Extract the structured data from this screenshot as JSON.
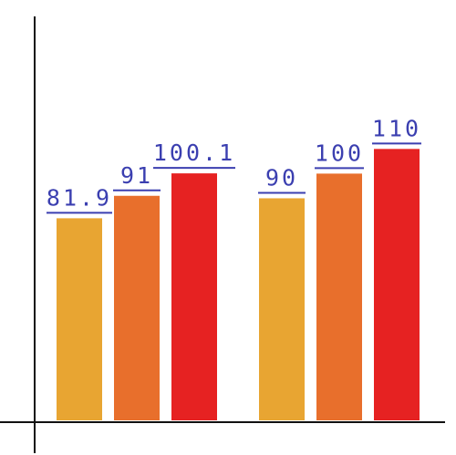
{
  "chart_data": {
    "type": "bar",
    "title": "",
    "xlabel": "",
    "ylabel": "",
    "ylim": [
      0,
      120
    ],
    "grid": false,
    "groups": [
      {
        "bars": [
          {
            "value": 81.9,
            "label": "81.9",
            "color": "#e8a532"
          },
          {
            "value": 91,
            "label": "91",
            "color": "#e86f2c"
          },
          {
            "value": 100.1,
            "label": "100.1",
            "color": "#e62222"
          }
        ]
      },
      {
        "bars": [
          {
            "value": 90,
            "label": "90",
            "color": "#e8a532"
          },
          {
            "value": 100,
            "label": "100",
            "color": "#e86f2c"
          },
          {
            "value": 110,
            "label": "110",
            "color": "#e62222"
          }
        ]
      }
    ]
  }
}
